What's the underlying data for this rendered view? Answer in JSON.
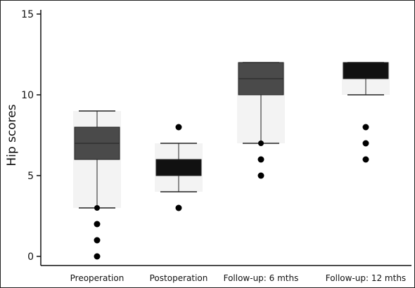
{
  "chart_data": {
    "type": "box",
    "ylabel": "Hip scores",
    "xlabel": "",
    "ylim": [
      0,
      15
    ],
    "yticks": [
      0,
      5,
      10,
      15
    ],
    "categories": [
      "Preoperation",
      "Postoperation",
      "Follow-up: 6 mths",
      "Follow-up: 12 mths"
    ],
    "boxes": [
      {
        "category": "Preoperation",
        "whisker_low": 3,
        "q1": 6,
        "median": 7,
        "q3": 8,
        "whisker_high": 9,
        "outliers": [
          2,
          1,
          0
        ],
        "color": "#4a4a4a"
      },
      {
        "category": "Postoperation",
        "whisker_low": 4,
        "q1": 5,
        "median": 5,
        "q3": 6,
        "whisker_high": 7,
        "outliers": [
          8,
          3
        ],
        "color": "#111111"
      },
      {
        "category": "Follow-up: 6 mths",
        "whisker_low": 7,
        "q1": 10,
        "median": 11,
        "q3": 12,
        "whisker_high": 12,
        "outliers": [
          6,
          5
        ],
        "color": "#4a4a4a"
      },
      {
        "category": "Follow-up: 12 mths",
        "whisker_low": 10,
        "q1": 11,
        "median": 11,
        "q3": 12,
        "whisker_high": 12,
        "outliers": [
          8,
          7,
          6
        ],
        "color": "#111111"
      }
    ],
    "grid": false,
    "legend": "none"
  }
}
